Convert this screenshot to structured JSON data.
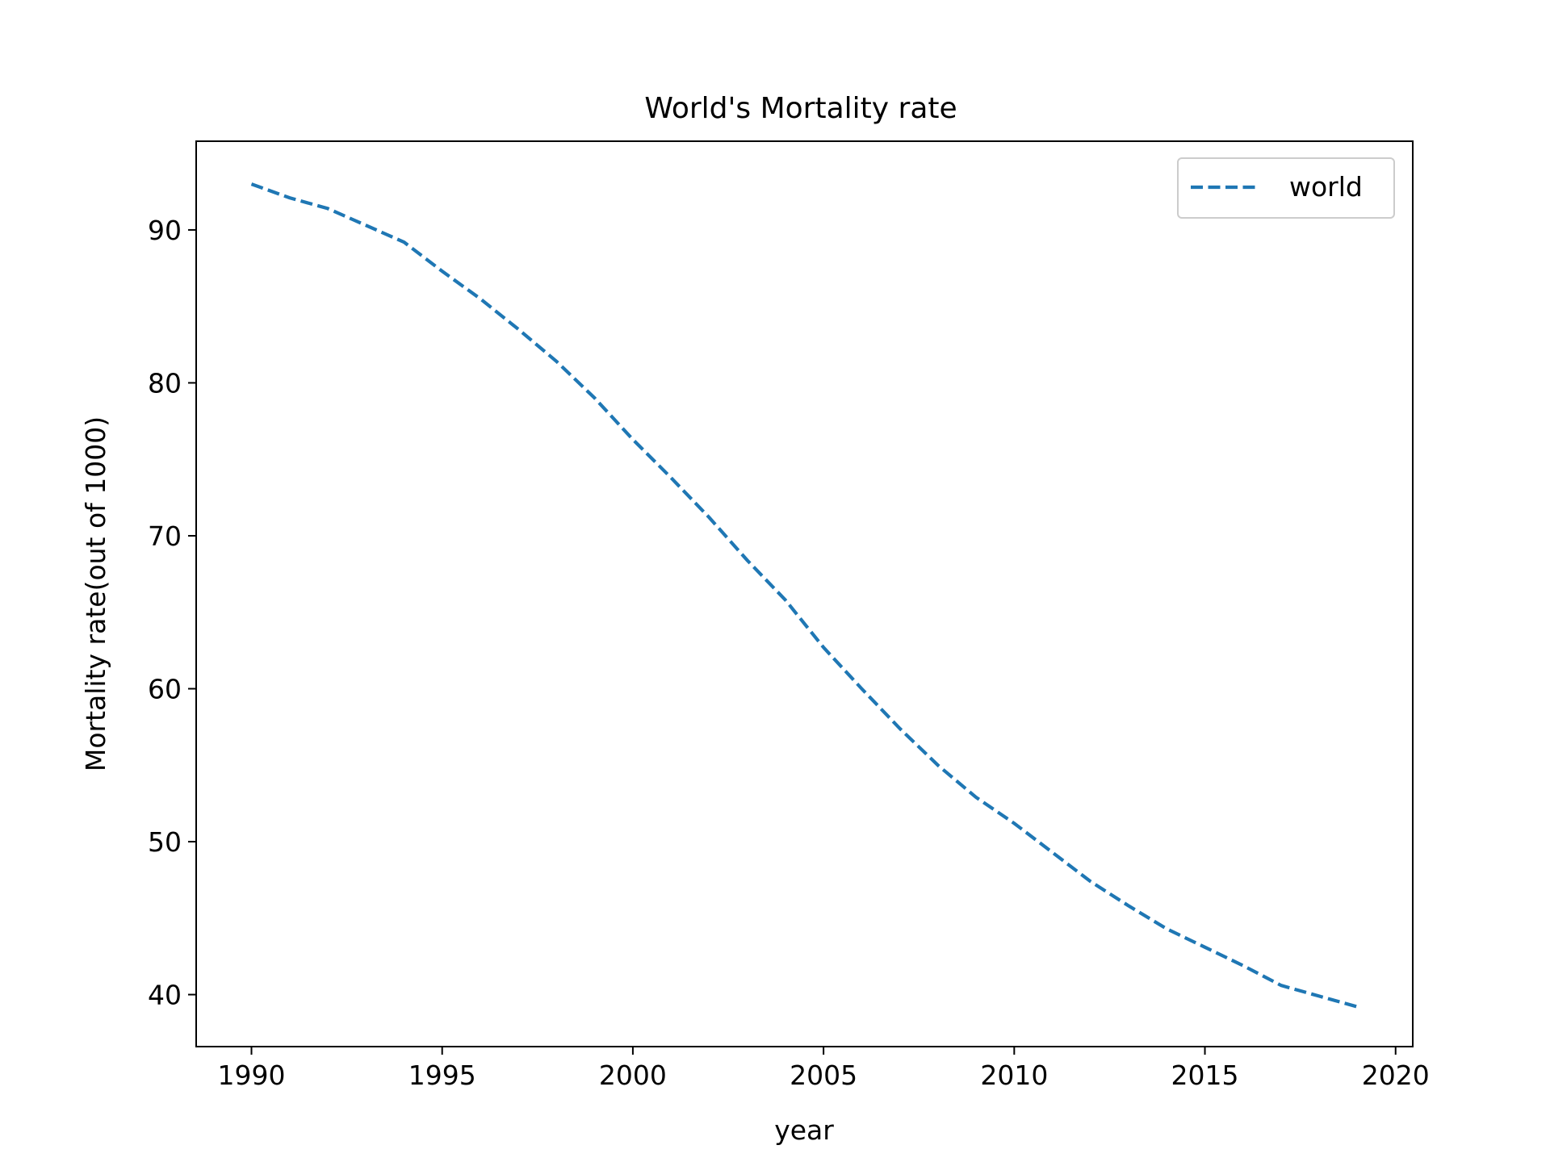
{
  "chart_data": {
    "type": "line",
    "title": "World's Mortality rate",
    "xlabel": "year",
    "ylabel": "Mortality rate(out of 1000)",
    "xlim": [
      1988.55,
      2020.45
    ],
    "ylim": [
      36.6,
      95.8
    ],
    "x_ticks": [
      1990,
      1995,
      2000,
      2005,
      2010,
      2015,
      2020
    ],
    "y_ticks": [
      40,
      50,
      60,
      70,
      80,
      90
    ],
    "grid": false,
    "legend_position": "top-right",
    "series": [
      {
        "name": "world",
        "color": "#1f77b4",
        "line_style": "dashed",
        "x": [
          1990,
          1991,
          1992,
          1993,
          1994,
          1995,
          1996,
          1997,
          1998,
          1999,
          2000,
          2001,
          2002,
          2003,
          2004,
          2005,
          2006,
          2007,
          2008,
          2009,
          2010,
          2011,
          2012,
          2013,
          2014,
          2015,
          2016,
          2017,
          2018,
          2019
        ],
        "values": [
          93.0,
          92.1,
          91.4,
          90.3,
          89.2,
          87.3,
          85.5,
          83.5,
          81.4,
          79.0,
          76.3,
          73.8,
          71.2,
          68.4,
          65.8,
          62.7,
          60.0,
          57.4,
          55.0,
          52.9,
          51.2,
          49.3,
          47.4,
          45.8,
          44.3,
          43.1,
          41.9,
          40.6,
          39.9,
          39.2
        ]
      }
    ]
  }
}
